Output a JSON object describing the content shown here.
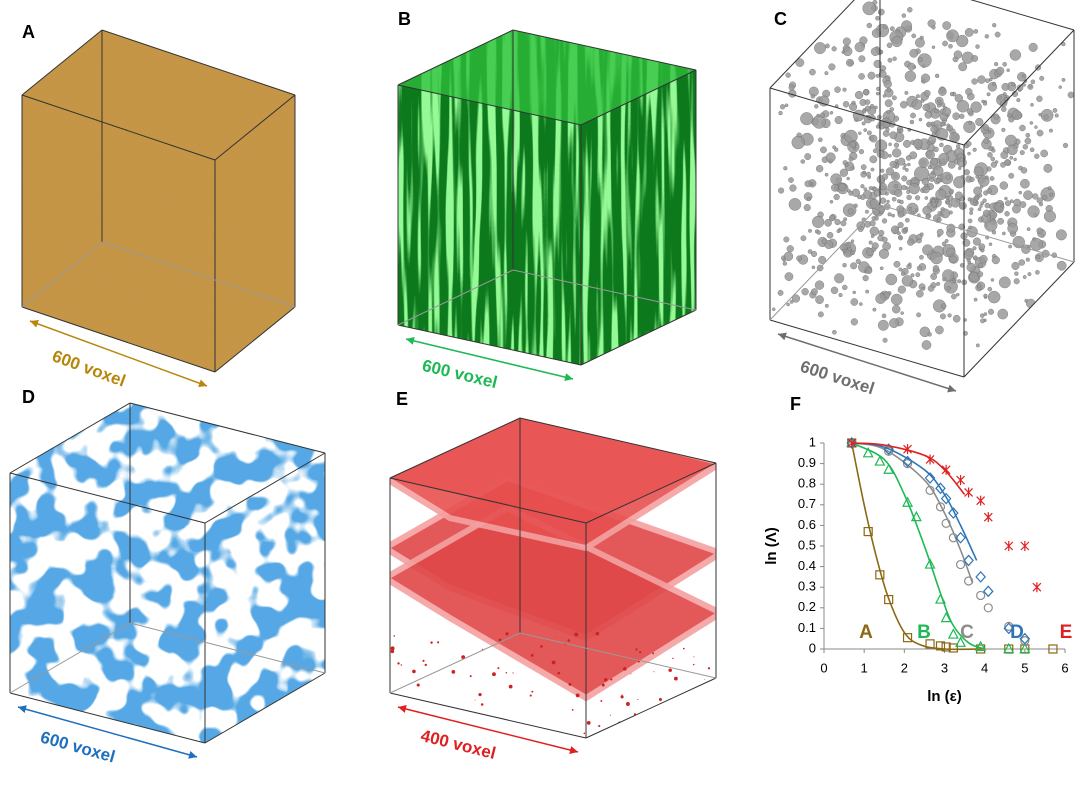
{
  "panels": [
    {
      "label": "A",
      "scale": "600 voxel",
      "color": "#b8860b"
    },
    {
      "label": "B",
      "scale": "600 voxel",
      "color": "#1db954"
    },
    {
      "label": "C",
      "scale": "600 voxel",
      "color": "#6e6e6e"
    },
    {
      "label": "D",
      "scale": "600 voxel",
      "color": "#1f6fbf"
    },
    {
      "label": "E",
      "scale": "400 voxel",
      "color": "#e02020"
    }
  ],
  "chart_data": {
    "type": "scatter",
    "title": "F",
    "x_label": "ln (ε)",
    "y_label": "ln (Λ)",
    "xlim": [
      0,
      6
    ],
    "xticks": [
      0,
      1,
      2,
      3,
      4,
      5,
      6
    ],
    "ylim": [
      0,
      1
    ],
    "yticks": [
      0,
      0.1,
      0.2,
      0.3,
      0.4,
      0.5,
      0.6,
      0.7,
      0.8,
      0.9,
      1
    ],
    "series": [
      {
        "name": "A",
        "color": "#8b6914",
        "marker": "square",
        "x": [
          0.69,
          1.1,
          1.39,
          1.61,
          2.08,
          2.64,
          2.9,
          3.04,
          3.22,
          3.9,
          4.6,
          5.0,
          5.7
        ],
        "values": [
          1,
          0.57,
          0.36,
          0.24,
          0.055,
          0.025,
          0.015,
          0.01,
          0.005,
          0,
          0,
          0,
          0
        ],
        "fit": {
          "x": [
            0.69,
            1.0,
            1.3,
            1.6,
            2.0,
            2.4,
            3.0,
            4.0
          ],
          "values": [
            1,
            0.7,
            0.45,
            0.25,
            0.08,
            0.02,
            0,
            0
          ]
        }
      },
      {
        "name": "B",
        "color": "#1db954",
        "marker": "triangle",
        "x": [
          0.69,
          1.1,
          1.39,
          1.61,
          2.08,
          2.3,
          2.64,
          2.9,
          3.04,
          3.22,
          3.4,
          3.9,
          4.6,
          5.0
        ],
        "values": [
          1,
          0.95,
          0.91,
          0.87,
          0.71,
          0.64,
          0.41,
          0.24,
          0.15,
          0.07,
          0.03,
          0.01,
          0,
          0
        ],
        "fit": {
          "x": [
            0.69,
            1.5,
            2.0,
            2.5,
            2.9,
            3.2,
            3.6,
            4.0
          ],
          "values": [
            1,
            0.92,
            0.75,
            0.5,
            0.27,
            0.12,
            0.03,
            0
          ]
        }
      },
      {
        "name": "C",
        "color": "#8c8c8c",
        "marker": "circle",
        "x": [
          0.69,
          1.61,
          2.08,
          2.64,
          2.9,
          3.04,
          3.22,
          3.4,
          3.6,
          3.9,
          4.09,
          4.6,
          5.0
        ],
        "values": [
          1,
          0.96,
          0.9,
          0.77,
          0.69,
          0.61,
          0.54,
          0.41,
          0.33,
          0.26,
          0.2,
          0.11,
          0.04
        ],
        "fit": {
          "x": [
            0.69,
            1.5,
            2.5,
            3.0,
            3.4,
            3.7
          ],
          "values": [
            1,
            0.97,
            0.82,
            0.66,
            0.48,
            0.32
          ]
        }
      },
      {
        "name": "D",
        "color": "#2e75b6",
        "marker": "diamond",
        "x": [
          0.69,
          1.61,
          2.08,
          2.64,
          2.9,
          3.04,
          3.22,
          3.4,
          3.6,
          3.9,
          4.09,
          4.6,
          5.0
        ],
        "values": [
          1,
          0.97,
          0.91,
          0.83,
          0.78,
          0.73,
          0.66,
          0.54,
          0.43,
          0.35,
          0.28,
          0.1,
          0.05
        ],
        "fit": {
          "x": [
            0.69,
            1.5,
            2.5,
            3.0,
            3.4,
            3.8
          ],
          "values": [
            1,
            0.98,
            0.87,
            0.75,
            0.6,
            0.43
          ]
        }
      },
      {
        "name": "E",
        "color": "#e02020",
        "marker": "star",
        "x": [
          0.69,
          2.08,
          2.64,
          3.04,
          3.4,
          3.6,
          3.9,
          4.09,
          4.6,
          5.0,
          5.3
        ],
        "values": [
          1,
          0.97,
          0.92,
          0.87,
          0.82,
          0.76,
          0.72,
          0.64,
          0.5,
          0.5,
          0.3
        ],
        "fit": {
          "x": [
            0.69,
            1.5,
            2.5,
            3.0,
            3.5
          ],
          "values": [
            1,
            0.99,
            0.94,
            0.87,
            0.75
          ]
        }
      }
    ]
  }
}
